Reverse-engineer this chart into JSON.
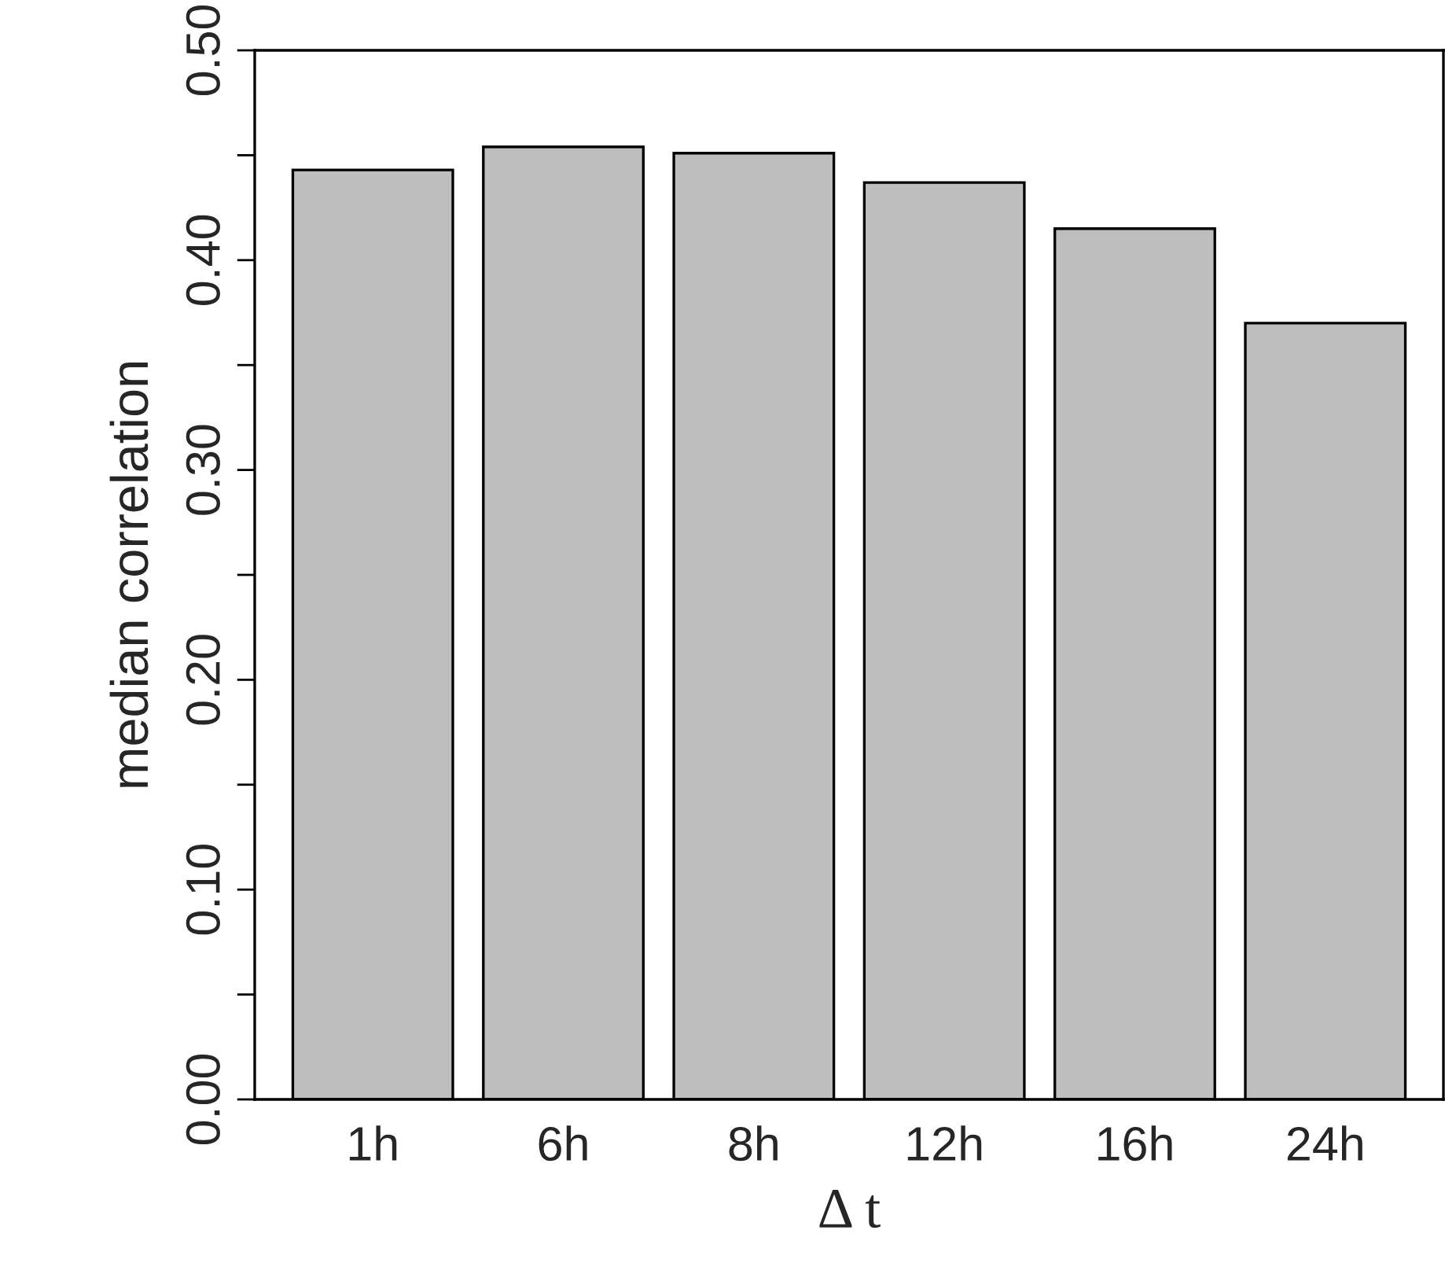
{
  "chart_data": {
    "type": "bar",
    "xlabel": "Δ t",
    "ylabel": "median correlation",
    "categories": [
      "1h",
      "6h",
      "8h",
      "12h",
      "16h",
      "24h"
    ],
    "values": [
      0.443,
      0.454,
      0.451,
      0.437,
      0.415,
      0.37
    ],
    "color": "#bebebe",
    "ylim": [
      0,
      0.5
    ],
    "yticks": [
      {
        "value": 0,
        "label": "0.00"
      },
      {
        "value": 0.05,
        "label": null
      },
      {
        "value": 0.1,
        "label": "0.10"
      },
      {
        "value": 0.15,
        "label": null
      },
      {
        "value": 0.2,
        "label": "0.20"
      },
      {
        "value": 0.25,
        "label": null
      },
      {
        "value": 0.3,
        "label": "0.30"
      },
      {
        "value": 0.35,
        "label": null
      },
      {
        "value": 0.4,
        "label": "0.40"
      },
      {
        "value": 0.45,
        "label": null
      },
      {
        "value": 0.5,
        "label": "0.50"
      }
    ],
    "grid": false
  }
}
